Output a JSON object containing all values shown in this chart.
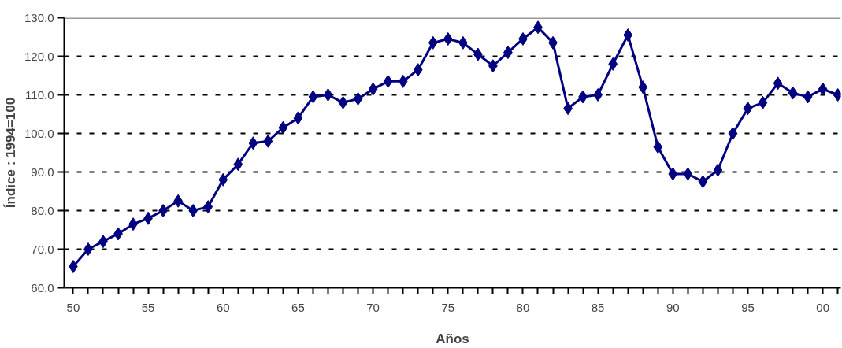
{
  "chart_data": {
    "type": "line",
    "xlabel": "Años",
    "ylabel": "Índice : 1994=100",
    "x": [
      1950,
      1951,
      1952,
      1953,
      1954,
      1955,
      1956,
      1957,
      1958,
      1959,
      1960,
      1961,
      1962,
      1963,
      1964,
      1965,
      1966,
      1967,
      1968,
      1969,
      1970,
      1971,
      1972,
      1973,
      1974,
      1975,
      1976,
      1977,
      1978,
      1979,
      1980,
      1981,
      1982,
      1983,
      1984,
      1985,
      1986,
      1987,
      1988,
      1989,
      1990,
      1991,
      1992,
      1993,
      1994,
      1995,
      1996,
      1997,
      1998,
      1999,
      2000,
      2001
    ],
    "series": [
      {
        "color": "#000080",
        "values": [
          65.5,
          70,
          72,
          74,
          76.5,
          78,
          80,
          82.5,
          80,
          81,
          88,
          92,
          97.5,
          98,
          101.5,
          104,
          109.5,
          110,
          108,
          109,
          111.5,
          113.5,
          113.5,
          116.5,
          123.5,
          124.5,
          123.5,
          120.5,
          117.5,
          121,
          124.5,
          127.5,
          123.5,
          106.5,
          109.5,
          110,
          118,
          125.5,
          112,
          96.5,
          89.5,
          89.5,
          87.5,
          90.5,
          100,
          106.5,
          108,
          113,
          110.5,
          109.5,
          111.5,
          110
        ]
      }
    ],
    "xlim": [
      1949.4,
      2001.2
    ],
    "ylim": [
      60,
      130
    ],
    "xticks": [
      {
        "value": 1950,
        "label": "50"
      },
      {
        "value": 1951,
        "label": null
      },
      {
        "value": 1952,
        "label": null
      },
      {
        "value": 1953,
        "label": null
      },
      {
        "value": 1954,
        "label": null
      },
      {
        "value": 1955,
        "label": "55"
      },
      {
        "value": 1956,
        "label": null
      },
      {
        "value": 1957,
        "label": null
      },
      {
        "value": 1958,
        "label": null
      },
      {
        "value": 1959,
        "label": null
      },
      {
        "value": 1960,
        "label": "60"
      },
      {
        "value": 1961,
        "label": null
      },
      {
        "value": 1962,
        "label": null
      },
      {
        "value": 1963,
        "label": null
      },
      {
        "value": 1964,
        "label": null
      },
      {
        "value": 1965,
        "label": "65"
      },
      {
        "value": 1966,
        "label": null
      },
      {
        "value": 1967,
        "label": null
      },
      {
        "value": 1968,
        "label": null
      },
      {
        "value": 1969,
        "label": null
      },
      {
        "value": 1970,
        "label": "70"
      },
      {
        "value": 1971,
        "label": null
      },
      {
        "value": 1972,
        "label": null
      },
      {
        "value": 1973,
        "label": null
      },
      {
        "value": 1974,
        "label": null
      },
      {
        "value": 1975,
        "label": "75"
      },
      {
        "value": 1976,
        "label": null
      },
      {
        "value": 1977,
        "label": null
      },
      {
        "value": 1978,
        "label": null
      },
      {
        "value": 1979,
        "label": null
      },
      {
        "value": 1980,
        "label": "80"
      },
      {
        "value": 1981,
        "label": null
      },
      {
        "value": 1982,
        "label": null
      },
      {
        "value": 1983,
        "label": null
      },
      {
        "value": 1984,
        "label": null
      },
      {
        "value": 1985,
        "label": "85"
      },
      {
        "value": 1986,
        "label": null
      },
      {
        "value": 1987,
        "label": null
      },
      {
        "value": 1988,
        "label": null
      },
      {
        "value": 1989,
        "label": null
      },
      {
        "value": 1990,
        "label": "90"
      },
      {
        "value": 1991,
        "label": null
      },
      {
        "value": 1992,
        "label": null
      },
      {
        "value": 1993,
        "label": null
      },
      {
        "value": 1994,
        "label": null
      },
      {
        "value": 1995,
        "label": "95"
      },
      {
        "value": 1996,
        "label": null
      },
      {
        "value": 1997,
        "label": null
      },
      {
        "value": 1998,
        "label": null
      },
      {
        "value": 1999,
        "label": null
      },
      {
        "value": 2000,
        "label": "00"
      },
      {
        "value": 2001,
        "label": null
      }
    ],
    "yticks": [
      {
        "value": 60,
        "label": "60.0"
      },
      {
        "value": 70,
        "label": "70.0"
      },
      {
        "value": 80,
        "label": "80.0"
      },
      {
        "value": 90,
        "label": "90.0"
      },
      {
        "value": 100,
        "label": "100.0"
      },
      {
        "value": 110,
        "label": "110.0"
      },
      {
        "value": 120,
        "label": "120.0"
      },
      {
        "value": 130,
        "label": "130.0"
      }
    ],
    "grid": "y",
    "marker": "diamond",
    "line_style": "solid"
  }
}
